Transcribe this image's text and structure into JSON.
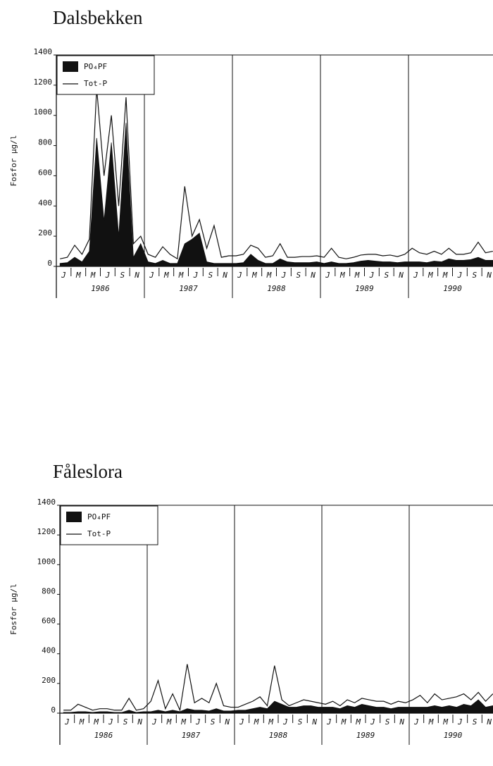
{
  "chart_data": [
    {
      "type": "area",
      "title": "Dalsbekken",
      "y_label": "Fosfor µg/l",
      "categories": [
        "J",
        null,
        "M",
        null,
        "M",
        null,
        "J",
        null,
        "S",
        null,
        "N",
        null,
        "J",
        null,
        "M",
        null,
        "M",
        null,
        "J",
        null,
        "S",
        null,
        "N",
        null,
        "J",
        null,
        "M",
        null,
        "M",
        null,
        "J",
        null,
        "S",
        null,
        "N",
        null,
        "J",
        null,
        "M",
        null,
        "M",
        null,
        "J",
        null,
        "S",
        null,
        "N",
        null,
        "J",
        null,
        "M",
        null,
        "M",
        null,
        "J",
        null,
        "S",
        null,
        "N",
        null
      ],
      "years": [
        "1986",
        "1987",
        "1988",
        "1989",
        "1990"
      ],
      "series": [
        {
          "name": "PO₄PF",
          "color": "#111111",
          "style": "area",
          "values": [
            20,
            25,
            60,
            30,
            100,
            850,
            300,
            820,
            200,
            950,
            60,
            150,
            30,
            20,
            40,
            20,
            20,
            150,
            180,
            220,
            30,
            20,
            20,
            20,
            20,
            25,
            80,
            40,
            20,
            20,
            50,
            30,
            25,
            25,
            25,
            30,
            20,
            30,
            20,
            20,
            25,
            35,
            40,
            35,
            30,
            30,
            25,
            30,
            30,
            30,
            25,
            35,
            30,
            50,
            40,
            40,
            45,
            60,
            40,
            40
          ]
        },
        {
          "name": "Tot-P",
          "color": "#111111",
          "style": "line",
          "values": [
            50,
            60,
            140,
            80,
            180,
            1180,
            600,
            1000,
            400,
            1120,
            150,
            200,
            80,
            60,
            130,
            80,
            50,
            530,
            200,
            310,
            120,
            270,
            60,
            70,
            70,
            80,
            140,
            120,
            60,
            70,
            150,
            60,
            60,
            65,
            65,
            70,
            60,
            120,
            60,
            50,
            60,
            75,
            80,
            80,
            70,
            75,
            65,
            80,
            120,
            90,
            80,
            100,
            80,
            120,
            80,
            80,
            90,
            160,
            90,
            100
          ]
        }
      ],
      "ylim": [
        0,
        1400
      ],
      "yticks": [
        0,
        200,
        400,
        600,
        800,
        1000,
        1200,
        1400
      ],
      "legend": "upper left"
    },
    {
      "type": "area",
      "title": "Fåleslora",
      "y_label": "Fosfor µg/l",
      "categories": [
        "J",
        null,
        "M",
        null,
        "M",
        null,
        "J",
        null,
        "S",
        null,
        "N",
        null,
        "J",
        null,
        "M",
        null,
        "M",
        null,
        "J",
        null,
        "S",
        null,
        "N",
        null,
        "J",
        null,
        "M",
        null,
        "M",
        null,
        "J",
        null,
        "S",
        null,
        "N",
        null,
        "J",
        null,
        "M",
        null,
        "M",
        null,
        "J",
        null,
        "S",
        null,
        "N",
        null,
        "J",
        null,
        "M",
        null,
        "M",
        null,
        "J",
        null,
        "S",
        null,
        "N",
        null
      ],
      "years": [
        "1986",
        "1987",
        "1988",
        "1989",
        "1990"
      ],
      "series": [
        {
          "name": "PO₄PF",
          "color": "#111111",
          "style": "area",
          "values": [
            5,
            5,
            10,
            10,
            5,
            10,
            10,
            5,
            5,
            20,
            5,
            10,
            10,
            20,
            10,
            20,
            10,
            30,
            20,
            20,
            15,
            30,
            15,
            15,
            20,
            20,
            30,
            40,
            30,
            80,
            60,
            40,
            40,
            50,
            50,
            40,
            40,
            40,
            30,
            50,
            40,
            60,
            50,
            40,
            40,
            30,
            40,
            40,
            40,
            40,
            40,
            50,
            40,
            50,
            40,
            60,
            50,
            90,
            40,
            50
          ]
        },
        {
          "name": "Tot-P",
          "color": "#111111",
          "style": "line",
          "values": [
            20,
            20,
            60,
            40,
            20,
            30,
            30,
            20,
            20,
            100,
            20,
            30,
            80,
            220,
            30,
            130,
            20,
            330,
            70,
            100,
            70,
            200,
            50,
            40,
            40,
            60,
            80,
            110,
            50,
            320,
            90,
            50,
            70,
            90,
            80,
            70,
            60,
            80,
            50,
            90,
            70,
            100,
            90,
            80,
            80,
            60,
            80,
            70,
            90,
            120,
            70,
            130,
            90,
            100,
            110,
            130,
            90,
            140,
            80,
            130
          ]
        }
      ],
      "ylim": [
        0,
        1400
      ],
      "yticks": [
        0,
        200,
        400,
        600,
        800,
        1000,
        1200,
        1400
      ],
      "legend": "upper left"
    }
  ]
}
